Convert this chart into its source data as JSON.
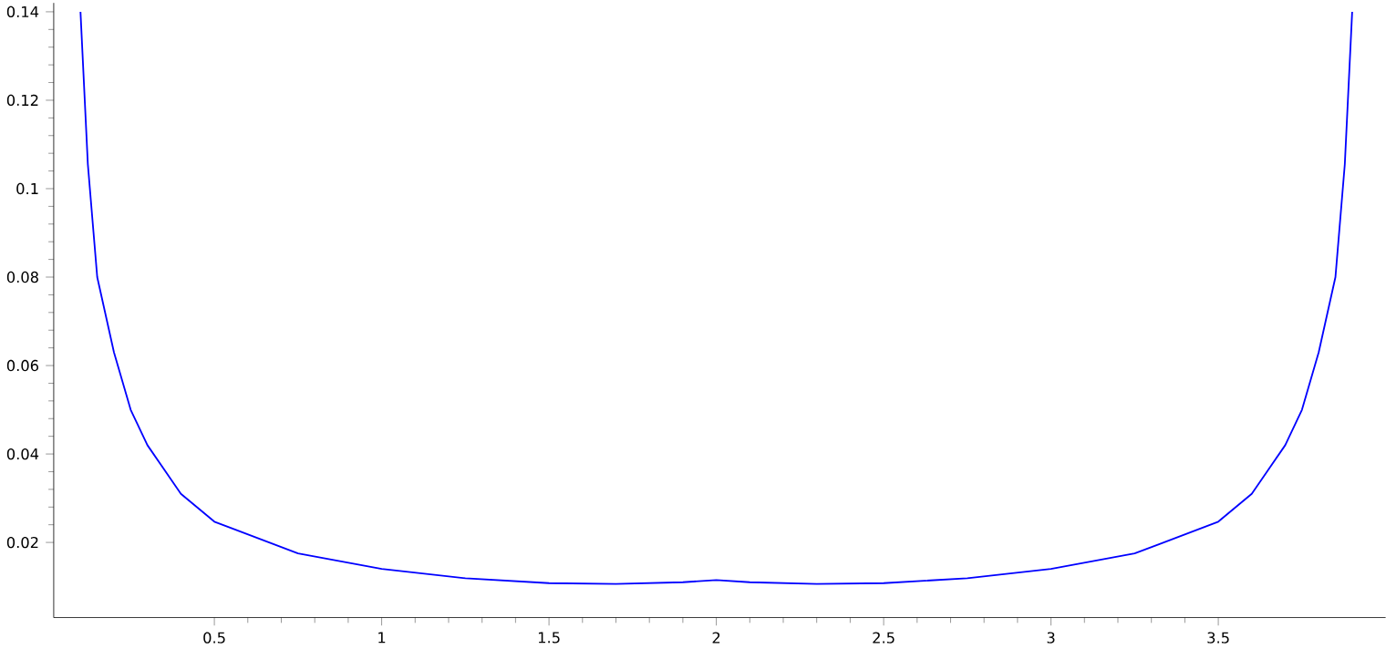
{
  "chart_data": {
    "type": "line",
    "x": [
      0.1,
      0.122,
      0.15,
      0.2,
      0.25,
      0.3,
      0.4,
      0.5,
      0.75,
      1.0,
      1.25,
      1.5,
      1.7,
      1.9,
      2.0,
      2.1,
      2.3,
      2.5,
      2.75,
      3.0,
      3.25,
      3.5,
      3.6,
      3.7,
      3.75,
      3.8,
      3.85,
      3.878,
      3.9
    ],
    "series": [
      {
        "color": "#0000ff",
        "values": [
          0.14,
          0.1055,
          0.08,
          0.063,
          0.05,
          0.042,
          0.031,
          0.0247,
          0.0175,
          0.014,
          0.0119,
          0.0108,
          0.0106,
          0.011,
          0.0115,
          0.011,
          0.0106,
          0.0108,
          0.0119,
          0.014,
          0.0175,
          0.0247,
          0.031,
          0.042,
          0.05,
          0.063,
          0.08,
          0.1055,
          0.14
        ]
      }
    ],
    "xlim": [
      0.02,
      4.0
    ],
    "ylim": [
      0.003,
      0.142
    ],
    "xticks": [
      0.5,
      1,
      1.5,
      2,
      2.5,
      3,
      3.5
    ],
    "yticks": [
      0.02,
      0.04,
      0.06,
      0.08,
      0.1,
      0.12,
      0.14
    ],
    "grid": false,
    "marker": "none",
    "line_style": "solid"
  }
}
